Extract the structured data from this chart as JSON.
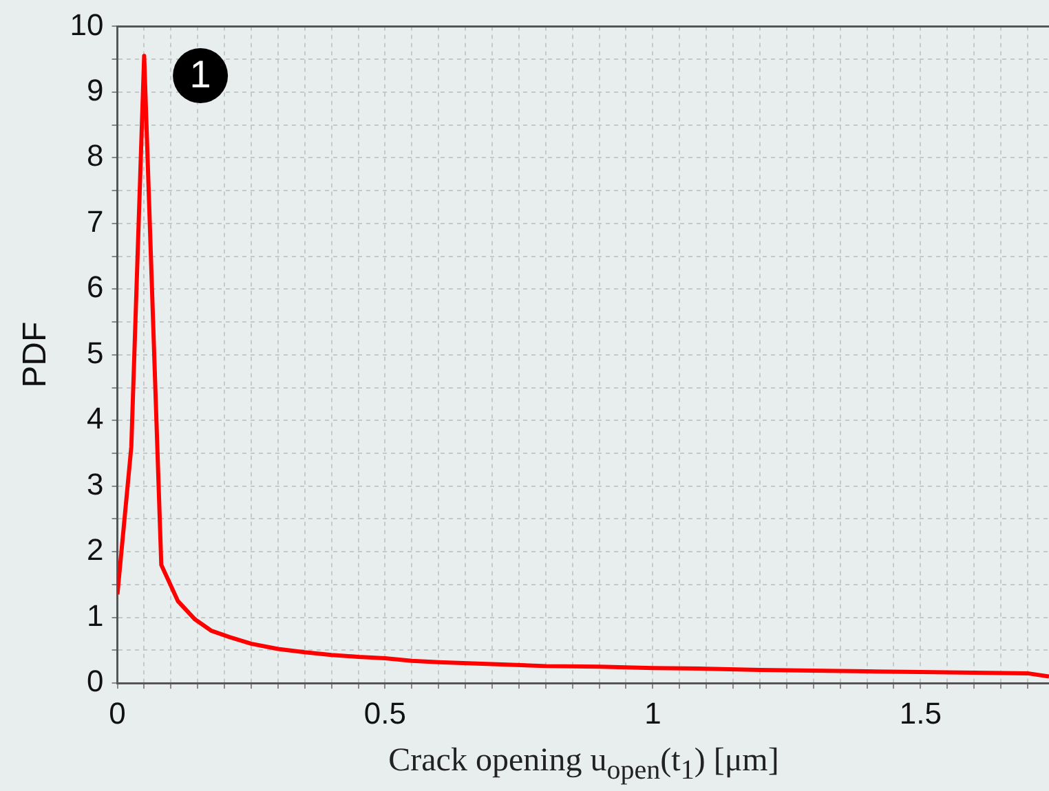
{
  "chart_data": {
    "type": "line",
    "ylabel": "PDF",
    "xlabel": "Crack opening u$_{open}$(t$_{1}$) [μm]",
    "x": [
      0,
      0.026,
      0.05,
      0.082,
      0.113,
      0.145,
      0.175,
      0.21,
      0.25,
      0.3,
      0.35,
      0.4,
      0.45,
      0.5,
      0.55,
      0.6,
      0.7,
      0.8,
      0.9,
      1.0,
      1.1,
      1.2,
      1.3,
      1.4,
      1.5,
      1.6,
      1.7,
      1.74
    ],
    "series": [
      {
        "color": "#ff0000",
        "values": [
          1.35,
          3.6,
          9.55,
          1.8,
          1.25,
          0.97,
          0.8,
          0.7,
          0.6,
          0.52,
          0.47,
          0.43,
          0.4,
          0.38,
          0.34,
          0.32,
          0.29,
          0.26,
          0.25,
          0.23,
          0.22,
          0.2,
          0.19,
          0.18,
          0.17,
          0.16,
          0.15,
          0.1
        ]
      }
    ],
    "xlim": [
      0,
      1.74
    ],
    "xticks": [
      0,
      {
        "value": 0.05,
        "label": null
      },
      {
        "value": 0.1,
        "label": null
      },
      {
        "value": 0.15,
        "label": null
      },
      {
        "value": 0.2,
        "label": null
      },
      {
        "value": 0.25,
        "label": null
      },
      {
        "value": 0.3,
        "label": null
      },
      {
        "value": 0.35,
        "label": null
      },
      {
        "value": 0.4,
        "label": null
      },
      {
        "value": 0.45,
        "label": null
      },
      0.5,
      {
        "value": 0.55,
        "label": null
      },
      {
        "value": 0.6,
        "label": null
      },
      {
        "value": 0.65,
        "label": null
      },
      {
        "value": 0.7,
        "label": null
      },
      {
        "value": 0.75,
        "label": null
      },
      {
        "value": 0.8,
        "label": null
      },
      {
        "value": 0.85,
        "label": null
      },
      {
        "value": 0.9,
        "label": null
      },
      {
        "value": 0.95,
        "label": null
      },
      1,
      {
        "value": 1.05,
        "label": null
      },
      {
        "value": 1.1,
        "label": null
      },
      {
        "value": 1.15,
        "label": null
      },
      {
        "value": 1.2,
        "label": null
      },
      {
        "value": 1.25,
        "label": null
      },
      {
        "value": 1.3,
        "label": null
      },
      {
        "value": 1.35,
        "label": null
      },
      {
        "value": 1.4,
        "label": null
      },
      {
        "value": 1.45,
        "label": null
      },
      1.5,
      {
        "value": 1.55,
        "label": null
      },
      {
        "value": 1.6,
        "label": null
      },
      {
        "value": 1.65,
        "label": null
      },
      {
        "value": 1.7,
        "label": null
      }
    ],
    "ylim": [
      0,
      10
    ],
    "yticks": [
      0,
      {
        "value": 0.5,
        "label": null
      },
      1,
      {
        "value": 1.5,
        "label": null
      },
      2,
      {
        "value": 2.5,
        "label": null
      },
      3,
      {
        "value": 3.5,
        "label": null
      },
      4,
      {
        "value": 4.5,
        "label": null
      },
      5,
      {
        "value": 5.5,
        "label": null
      },
      6,
      {
        "value": 6.5,
        "label": null
      },
      7,
      {
        "value": 7.5,
        "label": null
      },
      8,
      {
        "value": 8.5,
        "label": null
      },
      9,
      {
        "value": 9.5,
        "label": null
      },
      10
    ],
    "grid": true,
    "legend": false,
    "marker": "none",
    "line_style": "solid",
    "annotations": [
      {
        "text": "1",
        "x": 0.155,
        "y": 9.25
      }
    ]
  }
}
